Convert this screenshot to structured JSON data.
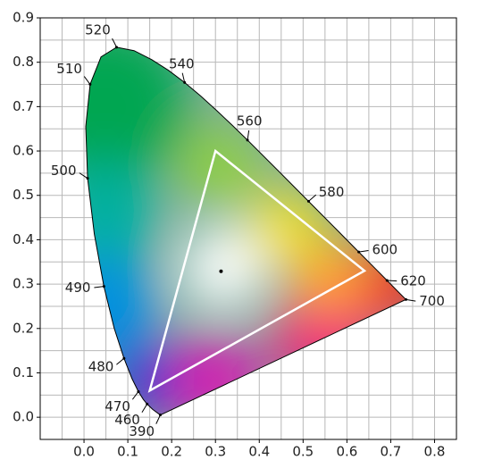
{
  "chart_data": {
    "type": "chromaticity",
    "xlim": [
      -0.1,
      0.85
    ],
    "ylim": [
      -0.05,
      0.9
    ],
    "xticks": [
      {
        "value": 0,
        "label": "0.0"
      },
      0.1,
      0.2,
      0.3,
      0.4,
      0.5,
      0.6,
      0.7,
      0.8
    ],
    "yticks": [
      {
        "value": 0,
        "label": "0.0"
      },
      0.1,
      0.2,
      0.3,
      0.4,
      0.5,
      0.6,
      0.7,
      0.8,
      0.9
    ],
    "grid": true,
    "xgrid": [
      -0.1,
      -0.05,
      0,
      0.05,
      0.1,
      0.15,
      0.2,
      0.25,
      0.3,
      0.35,
      0.4,
      0.45,
      0.5,
      0.55,
      0.6,
      0.65,
      0.7,
      0.75,
      0.8,
      0.85
    ],
    "ygrid": [
      -0.05,
      0,
      0.05,
      0.1,
      0.15,
      0.2,
      0.25,
      0.3,
      0.35,
      0.4,
      0.45,
      0.5,
      0.55,
      0.6,
      0.65,
      0.7,
      0.75,
      0.8,
      0.85,
      0.9
    ],
    "locus": {
      "x": [
        0.1741,
        0.1566,
        0.144,
        0.1355,
        0.1241,
        0.1096,
        0.0913,
        0.0687,
        0.0454,
        0.0235,
        0.0082,
        0.0039,
        0.0139,
        0.0389,
        0.0743,
        0.1142,
        0.1547,
        0.1929,
        0.2296,
        0.2658,
        0.3016,
        0.3373,
        0.3731,
        0.4441,
        0.5125,
        0.5752,
        0.627,
        0.6658,
        0.6915,
        0.719,
        0.7347
      ],
      "y": [
        0.005,
        0.0177,
        0.0297,
        0.0399,
        0.0578,
        0.0868,
        0.1327,
        0.2007,
        0.295,
        0.4127,
        0.5384,
        0.6548,
        0.7502,
        0.812,
        0.8338,
        0.8262,
        0.8059,
        0.7816,
        0.7543,
        0.7243,
        0.6923,
        0.6589,
        0.6245,
        0.5547,
        0.4866,
        0.4242,
        0.3725,
        0.334,
        0.3083,
        0.2809,
        0.2653
      ],
      "labels": [
        390,
        null,
        460,
        null,
        470,
        null,
        480,
        null,
        490,
        null,
        500,
        null,
        510,
        null,
        520,
        null,
        null,
        null,
        540,
        null,
        null,
        null,
        560,
        null,
        580,
        null,
        600,
        null,
        620,
        null,
        700
      ]
    },
    "gamut": {
      "x": [
        0.64,
        0.3,
        0.15
      ],
      "y": [
        0.33,
        0.6,
        0.06
      ],
      "color": "#ffffff"
    },
    "white_point": {
      "x": 0.3127,
      "y": 0.329
    }
  }
}
